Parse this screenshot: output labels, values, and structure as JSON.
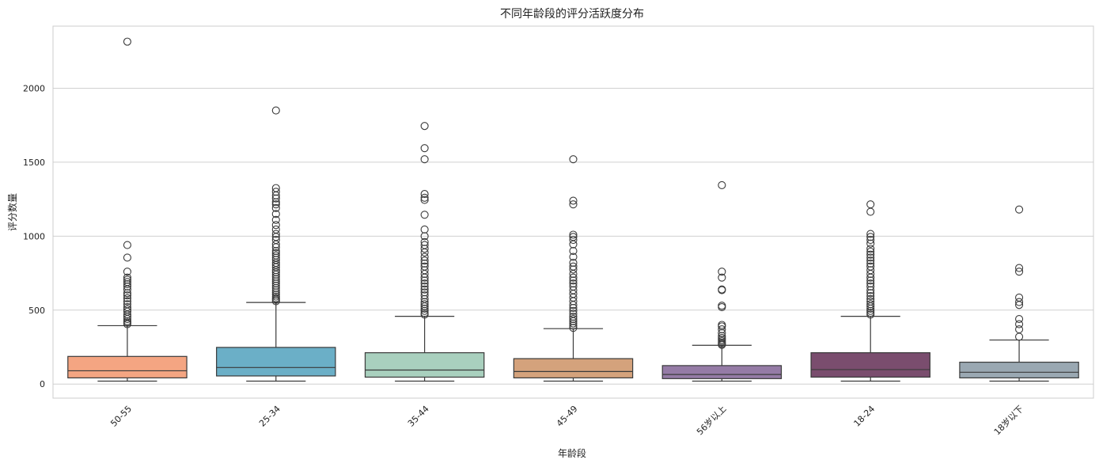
{
  "chart_data": {
    "type": "box",
    "title": "不同年龄段的评分活跃度分布",
    "xlabel": "年龄段",
    "ylabel": "评分数量",
    "ylim": [
      -95,
      2420
    ],
    "yticks": [
      0,
      500,
      1000,
      1500,
      2000
    ],
    "grid": "horizontal",
    "categories": [
      "50-55",
      "25-34",
      "35-44",
      "45-49",
      "56岁以上",
      "18-24",
      "18岁以下"
    ],
    "colors": [
      "#F4A582",
      "#6BAFC7",
      "#A9D0BE",
      "#D4A27C",
      "#957BA6",
      "#7A4D6E",
      "#9AA8B2"
    ],
    "boxes": [
      {
        "min": 20,
        "q1": 42,
        "median": 90,
        "q3": 187,
        "max": 395,
        "outliers": [
          405,
          415,
          425,
          440,
          455,
          470,
          490,
          505,
          520,
          540,
          560,
          580,
          600,
          615,
          640,
          660,
          675,
          690,
          705,
          720,
          760,
          855,
          940,
          2315
        ]
      },
      {
        "min": 20,
        "q1": 55,
        "median": 112,
        "q3": 248,
        "max": 552,
        "outliers": [
          560,
          570,
          580,
          592,
          605,
          620,
          635,
          650,
          665,
          680,
          695,
          710,
          725,
          740,
          755,
          770,
          790,
          805,
          820,
          840,
          855,
          870,
          885,
          900,
          925,
          945,
          975,
          995,
          1015,
          1045,
          1075,
          1110,
          1150,
          1190,
          1215,
          1230,
          1255,
          1275,
          1300,
          1325,
          1850
        ]
      },
      {
        "min": 20,
        "q1": 47,
        "median": 95,
        "q3": 212,
        "max": 458,
        "outliers": [
          470,
          480,
          495,
          510,
          525,
          540,
          555,
          575,
          600,
          620,
          640,
          660,
          680,
          700,
          720,
          745,
          770,
          795,
          815,
          835,
          860,
          890,
          915,
          940,
          960,
          1000,
          1045,
          1145,
          1245,
          1260,
          1285,
          1520,
          1595,
          1745
        ]
      },
      {
        "min": 20,
        "q1": 42,
        "median": 85,
        "q3": 172,
        "max": 375,
        "outliers": [
          380,
          395,
          410,
          425,
          440,
          455,
          475,
          495,
          515,
          535,
          560,
          585,
          610,
          635,
          660,
          680,
          700,
          720,
          745,
          775,
          795,
          820,
          860,
          900,
          945,
          975,
          995,
          1010,
          1215,
          1240,
          1520
        ]
      },
      {
        "min": 20,
        "q1": 37,
        "median": 65,
        "q3": 125,
        "max": 262,
        "outliers": [
          265,
          272,
          280,
          290,
          300,
          312,
          325,
          345,
          370,
          390,
          400,
          520,
          530,
          635,
          640,
          720,
          760,
          1345
        ]
      },
      {
        "min": 20,
        "q1": 47,
        "median": 98,
        "q3": 212,
        "max": 458,
        "outliers": [
          470,
          482,
          495,
          510,
          525,
          540,
          558,
          575,
          595,
          615,
          635,
          660,
          680,
          700,
          720,
          745,
          770,
          795,
          815,
          835,
          855,
          875,
          895,
          915,
          950,
          975,
          995,
          1015,
          1165,
          1215
        ]
      },
      {
        "min": 20,
        "q1": 42,
        "median": 80,
        "q3": 148,
        "max": 298,
        "outliers": [
          320,
          370,
          405,
          440,
          535,
          555,
          585,
          760,
          785,
          1180
        ]
      }
    ]
  }
}
